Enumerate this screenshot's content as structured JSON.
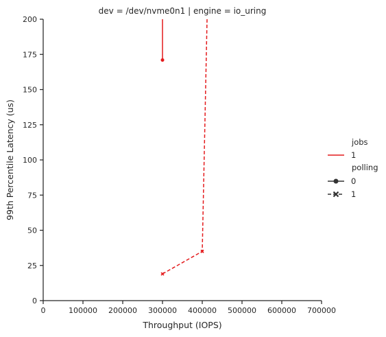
{
  "chart_data": {
    "type": "line",
    "title": "dev = /dev/nvme0n1 | engine = io_uring",
    "xlabel": "Throughput (IOPS)",
    "ylabel": "99th Percentile Latency (us)",
    "xlim": [
      0,
      700000
    ],
    "ylim": [
      0,
      200
    ],
    "x_ticks": [
      "0",
      "100000",
      "200000",
      "300000",
      "400000",
      "500000",
      "600000",
      "700000"
    ],
    "y_ticks": [
      "0",
      "25",
      "50",
      "75",
      "100",
      "125",
      "150",
      "175",
      "200"
    ],
    "grid": false,
    "legend_position": "right",
    "legend": {
      "jobs_title": "jobs",
      "jobs_entries": [
        {
          "label": "1",
          "color": "#e41a1c"
        }
      ],
      "polling_title": "polling",
      "polling_entries": [
        {
          "label": "0",
          "marker": "circle",
          "dash": "solid"
        },
        {
          "label": "1",
          "marker": "x",
          "dash": "dashed"
        }
      ]
    },
    "series": [
      {
        "jobs": "1",
        "polling": "0",
        "color": "#e41a1c",
        "marker": "circle",
        "dash": "solid",
        "points": [
          {
            "x": 300000,
            "y": 171
          },
          {
            "x": 300000,
            "y": 240
          }
        ]
      },
      {
        "jobs": "1",
        "polling": "1",
        "color": "#e41a1c",
        "marker": "x",
        "dash": "dashed",
        "points": [
          {
            "x": 300000,
            "y": 19
          },
          {
            "x": 400000,
            "y": 35
          },
          {
            "x": 415000,
            "y": 240
          }
        ]
      }
    ]
  }
}
